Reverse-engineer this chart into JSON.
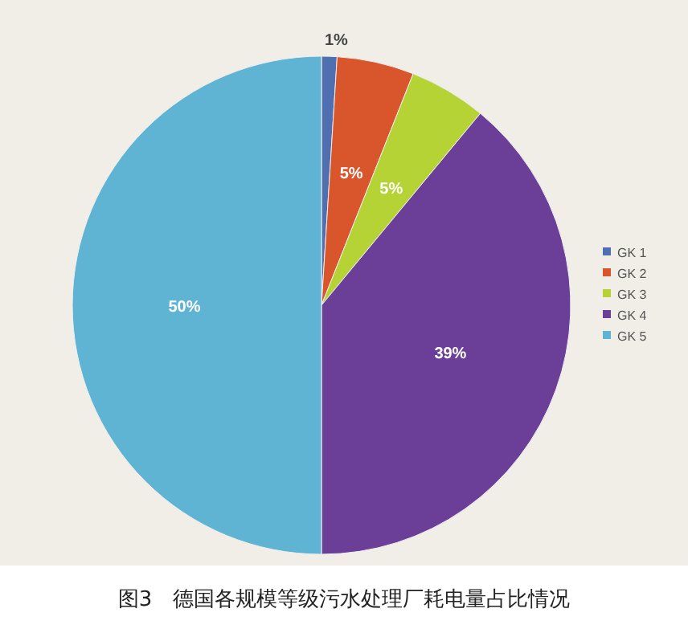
{
  "chart_data": {
    "type": "pie",
    "title": "图3　德国各规模等级污水处理厂耗电量占比情况",
    "categories": [
      "GK 1",
      "GK 2",
      "GK 3",
      "GK 4",
      "GK 5"
    ],
    "values": [
      1,
      5,
      5,
      39,
      50
    ],
    "colors": [
      "#4f6fb0",
      "#d9552b",
      "#b5d334",
      "#6b3f98",
      "#5fb3d3"
    ],
    "value_labels": [
      "1%",
      "5%",
      "5%",
      "39%",
      "50%"
    ],
    "legend": "right"
  }
}
